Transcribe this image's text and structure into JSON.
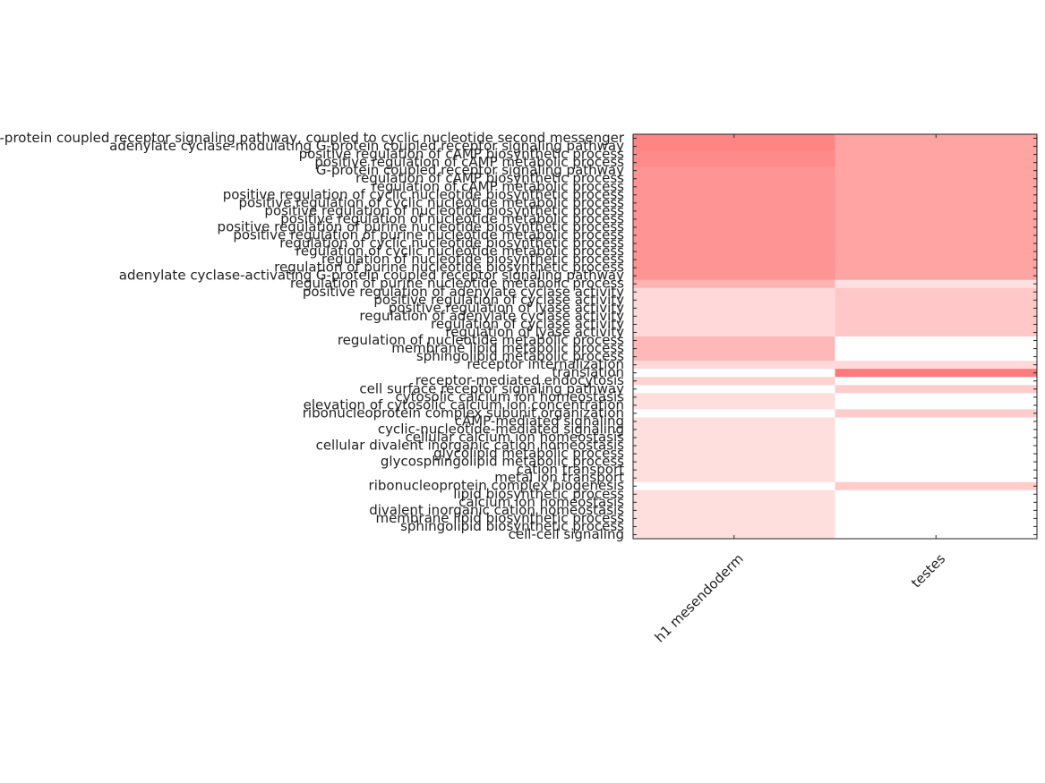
{
  "chart_data": {
    "type": "heatmap",
    "color": "#ff0000",
    "x_categories": [
      "h1 mesendoderm",
      "testes"
    ],
    "y_categories": [
      "G-protein coupled receptor signaling pathway, coupled to cyclic nucleotide second messenger",
      "adenylate cyclase-modulating G-protein coupled receptor signaling pathway",
      "positive regulation of cAMP biosynthetic process",
      "positive regulation of cAMP metabolic process",
      "G-protein coupled receptor signaling pathway",
      "regulation of cAMP biosynthetic process",
      "regulation of cAMP metabolic process",
      "positive regulation of cyclic nucleotide biosynthetic process",
      "positive regulation of cyclic nucleotide metabolic process",
      "positive regulation of nucleotide biosynthetic process",
      "positive regulation of nucleotide metabolic process",
      "positive regulation of purine nucleotide biosynthetic process",
      "positive regulation of purine nucleotide metabolic process",
      "regulation of cyclic nucleotide biosynthetic process",
      "regulation of cyclic nucleotide metabolic process",
      "regulation of nucleotide biosynthetic process",
      "regulation of purine nucleotide biosynthetic process",
      "adenylate cyclase-activating G-protein coupled receptor signaling pathway",
      "regulation of purine nucleotide metabolic process",
      "positive regulation of adenylate cyclase activity",
      "positive regulation of cyclase activity",
      "positive regulation of lyase activity",
      "regulation of adenylate cyclase activity",
      "regulation of cyclase activity",
      "regulation of lyase activity",
      "regulation of nucleotide metabolic process",
      "membrane lipid metabolic process",
      "sphingolipid metabolic process",
      "receptor internalization",
      "translation",
      "receptor-mediated endocytosis",
      "cell surface receptor signaling pathway",
      "cytosolic calcium ion homeostasis",
      "elevation of cytosolic calcium ion concentration",
      "ribonucleoprotein complex subunit organization",
      "cAMP-mediated signaling",
      "cyclic-nucleotide-mediated signaling",
      "cellular calcium ion homeostasis",
      "cellular divalent inorganic cation homeostasis",
      "glycolipid metabolic process",
      "glycosphingolipid metabolic process",
      "cation transport",
      "metal ion transport",
      "ribonucleoprotein complex biogenesis",
      "lipid biosynthetic process",
      "calcium ion homeostasis",
      "divalent inorganic cation homeostasis",
      "membrane lipid biosynthetic process",
      "sphingolipid biosynthetic process",
      "cell-cell signaling"
    ],
    "values": [
      [
        0.48,
        0.36
      ],
      [
        0.48,
        0.36
      ],
      [
        0.46,
        0.36
      ],
      [
        0.46,
        0.36
      ],
      [
        0.42,
        0.36
      ],
      [
        0.42,
        0.36
      ],
      [
        0.42,
        0.36
      ],
      [
        0.42,
        0.36
      ],
      [
        0.42,
        0.36
      ],
      [
        0.42,
        0.36
      ],
      [
        0.42,
        0.36
      ],
      [
        0.42,
        0.36
      ],
      [
        0.42,
        0.36
      ],
      [
        0.42,
        0.36
      ],
      [
        0.42,
        0.36
      ],
      [
        0.42,
        0.36
      ],
      [
        0.42,
        0.36
      ],
      [
        0.42,
        0.36
      ],
      [
        0.3,
        0.12
      ],
      [
        0.15,
        0.22
      ],
      [
        0.15,
        0.22
      ],
      [
        0.15,
        0.22
      ],
      [
        0.15,
        0.22
      ],
      [
        0.15,
        0.22
      ],
      [
        0.15,
        0.22
      ],
      [
        0.28,
        0
      ],
      [
        0.28,
        0
      ],
      [
        0.28,
        0
      ],
      [
        0.15,
        0.15
      ],
      [
        0,
        0.52
      ],
      [
        0.18,
        0
      ],
      [
        0,
        0.2
      ],
      [
        0.13,
        0
      ],
      [
        0.13,
        0
      ],
      [
        0,
        0.2
      ],
      [
        0.13,
        0
      ],
      [
        0.13,
        0
      ],
      [
        0.13,
        0
      ],
      [
        0.13,
        0
      ],
      [
        0.13,
        0
      ],
      [
        0.13,
        0
      ],
      [
        0.13,
        0
      ],
      [
        0.13,
        0
      ],
      [
        0,
        0.2
      ],
      [
        0.13,
        0
      ],
      [
        0.13,
        0
      ],
      [
        0.13,
        0
      ],
      [
        0.13,
        0
      ],
      [
        0.13,
        0
      ],
      [
        0.13,
        0
      ]
    ]
  }
}
